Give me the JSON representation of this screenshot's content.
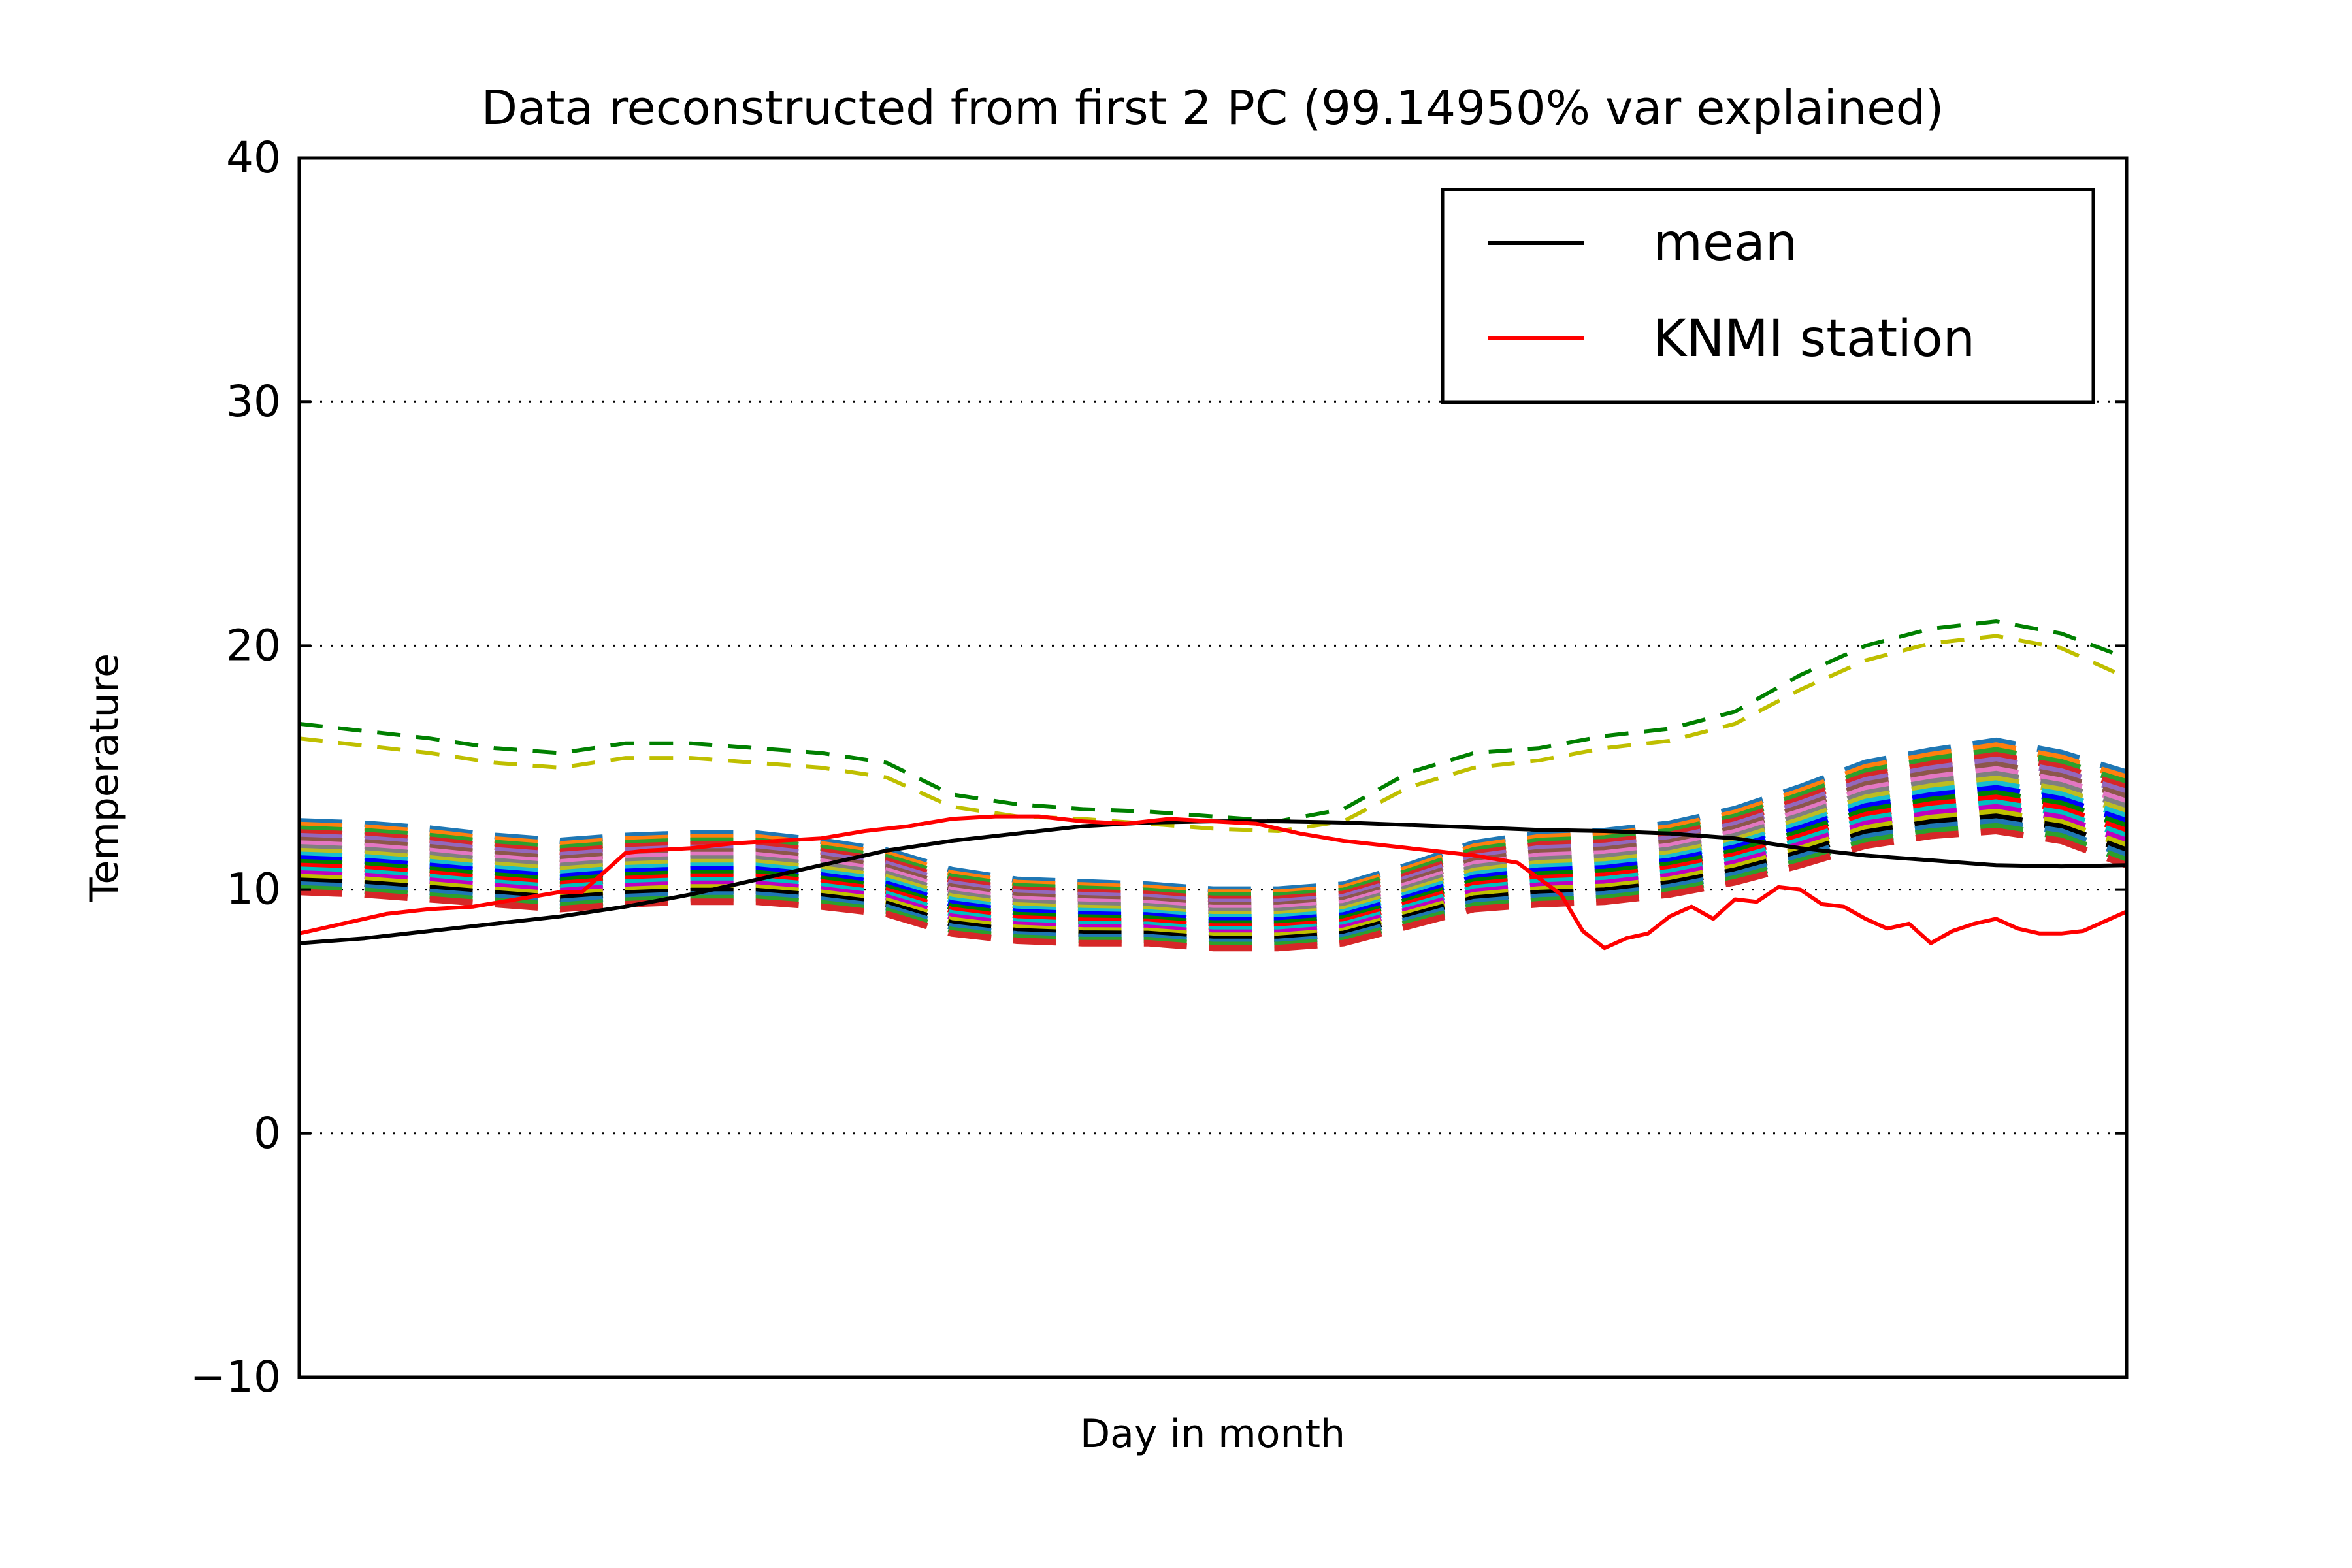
{
  "chart_data": {
    "type": "line",
    "title": "Data reconstructed from first 2 PC (99.14950% var explained)",
    "xlabel": "Day in month",
    "ylabel": "Temperature",
    "xlim": [
      0,
      84
    ],
    "ylim": [
      -10,
      40
    ],
    "yticks": [
      -10,
      0,
      10,
      20,
      30,
      40
    ],
    "ytick_labels": [
      "−10",
      "0",
      "10",
      "20",
      "30",
      "40"
    ],
    "grid": "horizontal dotted",
    "legend_position": "top-right",
    "legend": [
      {
        "label": "mean",
        "color": "#000000"
      },
      {
        "label": "KNMI station",
        "color": "#ff0000"
      }
    ],
    "mean": {
      "name": "mean",
      "color": "#000000",
      "x": [
        0,
        3,
        6,
        9,
        12,
        15,
        18,
        21,
        24,
        27,
        30,
        33,
        36,
        39,
        42,
        45,
        48,
        51,
        54,
        57,
        60,
        63,
        66,
        69,
        72,
        75,
        78,
        81,
        84
      ],
      "y": [
        7.8,
        8.0,
        8.3,
        8.6,
        8.9,
        9.3,
        9.8,
        10.4,
        11.0,
        11.6,
        12.0,
        12.3,
        12.6,
        12.75,
        12.8,
        12.8,
        12.75,
        12.65,
        12.55,
        12.45,
        12.4,
        12.3,
        12.1,
        11.7,
        11.4,
        11.2,
        11.0,
        10.95,
        11.0
      ]
    },
    "knmi_station": {
      "name": "KNMI station",
      "color": "#ff0000",
      "x": [
        0,
        2,
        4,
        6,
        8,
        10,
        12,
        13,
        14,
        15,
        16,
        18,
        20,
        22,
        24,
        26,
        28,
        30,
        32,
        34,
        36,
        38,
        40,
        42,
        44,
        46,
        48,
        50,
        52,
        54,
        56,
        58,
        59,
        60,
        61,
        62,
        63,
        64,
        65,
        66,
        67,
        68,
        69,
        70,
        71,
        72,
        73,
        74,
        75,
        76,
        77,
        78,
        79,
        80,
        81,
        82,
        83,
        84
      ],
      "y": [
        8.2,
        8.6,
        9.0,
        9.2,
        9.3,
        9.6,
        9.9,
        9.9,
        10.7,
        11.5,
        11.6,
        11.7,
        11.9,
        12.0,
        12.1,
        12.4,
        12.6,
        12.9,
        13.0,
        13.0,
        12.8,
        12.7,
        12.9,
        12.8,
        12.7,
        12.3,
        12.0,
        11.8,
        11.6,
        11.4,
        11.1,
        9.8,
        8.3,
        7.6,
        8.0,
        8.2,
        8.9,
        9.3,
        8.8,
        9.6,
        9.5,
        10.1,
        10.0,
        9.4,
        9.3,
        8.8,
        8.4,
        8.6,
        7.8,
        8.3,
        8.6,
        8.8,
        8.4,
        8.2,
        8.2,
        8.3,
        8.7,
        9.1
      ]
    },
    "pc_members": {
      "count": 20,
      "style": "dashed",
      "x": [
        0,
        3,
        6,
        9,
        12,
        15,
        18,
        21,
        24,
        27,
        30,
        33,
        36,
        39,
        42,
        45,
        48,
        51,
        54,
        57,
        60,
        63,
        66,
        69,
        72,
        75,
        78,
        81,
        84
      ],
      "top": [
        12.8,
        12.7,
        12.5,
        12.2,
        12.0,
        12.2,
        12.3,
        12.3,
        12.0,
        11.6,
        10.8,
        10.4,
        10.3,
        10.2,
        10.0,
        10.0,
        10.2,
        11.0,
        11.9,
        12.3,
        12.4,
        12.7,
        13.3,
        14.2,
        15.2,
        15.7,
        16.1,
        15.6,
        14.8
      ],
      "bottom": [
        9.9,
        9.8,
        9.6,
        9.4,
        9.2,
        9.4,
        9.5,
        9.5,
        9.3,
        9.0,
        8.2,
        7.9,
        7.8,
        7.8,
        7.6,
        7.6,
        7.8,
        8.5,
        9.2,
        9.4,
        9.5,
        9.8,
        10.3,
        11.0,
        11.8,
        12.2,
        12.4,
        12.0,
        11.0
      ],
      "colors": [
        "#1f77b4",
        "#ff7f0e",
        "#2ca02c",
        "#d62728",
        "#9467bd",
        "#8c564b",
        "#e377c2",
        "#7f7f7f",
        "#bcbd22",
        "#17becf",
        "#0000ff",
        "#008000",
        "#ff0000",
        "#00bfbf",
        "#bf00bf",
        "#bfbf00",
        "#000000",
        "#1f77b4",
        "#2ca02c",
        "#d62728"
      ]
    },
    "upper_green": {
      "color": "#008000",
      "style": "dashed",
      "x": [
        0,
        3,
        6,
        9,
        12,
        15,
        18,
        21,
        24,
        27,
        30,
        33,
        36,
        39,
        42,
        45,
        48,
        51,
        54,
        57,
        60,
        63,
        66,
        69,
        72,
        75,
        78,
        81,
        84
      ],
      "y": [
        16.8,
        16.5,
        16.2,
        15.8,
        15.6,
        16.0,
        16.0,
        15.8,
        15.6,
        15.2,
        13.9,
        13.5,
        13.3,
        13.2,
        13.0,
        12.8,
        13.3,
        14.8,
        15.6,
        15.8,
        16.3,
        16.6,
        17.3,
        18.8,
        20.0,
        20.7,
        21.0,
        20.5,
        19.5
      ]
    },
    "upper_yellow": {
      "color": "#bfbf00",
      "style": "dashed",
      "x": [
        0,
        3,
        6,
        9,
        12,
        15,
        18,
        21,
        24,
        27,
        30,
        33,
        36,
        39,
        42,
        45,
        48,
        51,
        54,
        57,
        60,
        63,
        66,
        69,
        72,
        75,
        78,
        81,
        84
      ],
      "y": [
        16.2,
        15.9,
        15.6,
        15.2,
        15.0,
        15.4,
        15.4,
        15.2,
        15.0,
        14.6,
        13.4,
        13.0,
        12.9,
        12.7,
        12.5,
        12.4,
        12.8,
        14.2,
        15.0,
        15.3,
        15.8,
        16.1,
        16.8,
        18.2,
        19.4,
        20.1,
        20.4,
        19.9,
        18.7
      ]
    }
  }
}
